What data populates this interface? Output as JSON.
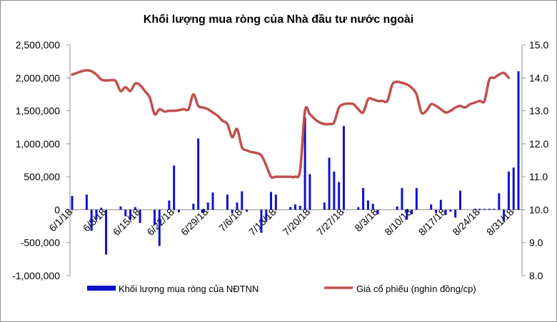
{
  "chart_data": {
    "type": "bar",
    "title": "Khối lượng mua ròng của Nhà đầu tư nước ngoài",
    "left_axis": {
      "ylim": [
        -1000000,
        2500000
      ],
      "ticks": [
        "-1,000,000",
        "-500,000",
        "0",
        "500,000",
        "1,000,000",
        "1,500,000",
        "2,000,000",
        "2,500,000"
      ],
      "tick_values": [
        -1000000,
        -500000,
        0,
        500000,
        1000000,
        1500000,
        2000000,
        2500000
      ]
    },
    "right_axis": {
      "ylim": [
        8.0,
        15.0
      ],
      "ticks": [
        "8.0",
        "9.0",
        "10.0",
        "11.0",
        "12.0",
        "13.0",
        "14.0",
        "15.0"
      ],
      "tick_values": [
        8,
        9,
        10,
        11,
        12,
        13,
        14,
        15
      ]
    },
    "x_axis": {
      "labels": [
        "6/1/18",
        "6/8/18",
        "6/15/18",
        "6/22/18",
        "6/29/18",
        "7/6/18",
        "7/13/18",
        "7/20/18",
        "7/27/18",
        "8/3/18",
        "8/10/18",
        "8/17/18",
        "8/24/18",
        "8/31/18"
      ],
      "label_days": [
        0,
        7,
        14,
        21,
        28,
        35,
        42,
        49,
        56,
        63,
        70,
        77,
        84,
        91
      ]
    },
    "series": [
      {
        "name": "Khối lượng mua ròng của NĐTNN",
        "type": "bar",
        "axis": "left",
        "color": "#1010cc",
        "points": [
          [
            0,
            210000
          ],
          [
            3,
            230000
          ],
          [
            4,
            -320000
          ],
          [
            5,
            -150000
          ],
          [
            6,
            30000
          ],
          [
            7,
            -680000
          ],
          [
            10,
            50000
          ],
          [
            11,
            -100000
          ],
          [
            12,
            -150000
          ],
          [
            13,
            40000
          ],
          [
            14,
            -200000
          ],
          [
            17,
            -230000
          ],
          [
            18,
            -550000
          ],
          [
            20,
            140000
          ],
          [
            21,
            670000
          ],
          [
            22,
            -40000
          ],
          [
            25,
            90000
          ],
          [
            26,
            1080000
          ],
          [
            27,
            -40000
          ],
          [
            28,
            110000
          ],
          [
            29,
            260000
          ],
          [
            32,
            230000
          ],
          [
            33,
            -50000
          ],
          [
            34,
            110000
          ],
          [
            35,
            280000
          ],
          [
            36,
            -30000
          ],
          [
            39,
            -350000
          ],
          [
            40,
            -180000
          ],
          [
            41,
            270000
          ],
          [
            42,
            230000
          ],
          [
            45,
            40000
          ],
          [
            46,
            80000
          ],
          [
            47,
            60000
          ],
          [
            48,
            1400000
          ],
          [
            49,
            540000
          ],
          [
            52,
            110000
          ],
          [
            53,
            790000
          ],
          [
            54,
            580000
          ],
          [
            55,
            420000
          ],
          [
            56,
            1270000
          ],
          [
            59,
            40000
          ],
          [
            60,
            330000
          ],
          [
            61,
            140000
          ],
          [
            62,
            90000
          ],
          [
            63,
            -70000
          ],
          [
            67,
            50000
          ],
          [
            68,
            330000
          ],
          [
            69,
            -150000
          ],
          [
            70,
            -70000
          ],
          [
            71,
            330000
          ],
          [
            74,
            80000
          ],
          [
            75,
            -50000
          ],
          [
            76,
            150000
          ],
          [
            77,
            -80000
          ],
          [
            78,
            -30000
          ],
          [
            79,
            -120000
          ],
          [
            80,
            290000
          ],
          [
            83,
            15000
          ],
          [
            84,
            15000
          ],
          [
            85,
            15000
          ],
          [
            86,
            15000
          ],
          [
            87,
            15000
          ],
          [
            88,
            250000
          ],
          [
            89,
            -180000
          ],
          [
            90,
            580000
          ],
          [
            91,
            640000
          ],
          [
            92,
            2100000
          ]
        ]
      },
      {
        "name": "Giá cổ phiếu (nghìn đồng/cp)",
        "type": "line",
        "axis": "right",
        "color": "#c0504d",
        "points": [
          [
            0,
            14.1
          ],
          [
            1,
            14.15
          ],
          [
            2,
            14.2
          ],
          [
            3,
            14.23
          ],
          [
            4,
            14.2
          ],
          [
            5,
            14.1
          ],
          [
            6,
            13.95
          ],
          [
            7,
            13.92
          ],
          [
            8,
            13.93
          ],
          [
            9,
            13.9
          ],
          [
            10,
            13.6
          ],
          [
            11,
            13.72
          ],
          [
            12,
            13.6
          ],
          [
            13,
            13.83
          ],
          [
            14,
            13.78
          ],
          [
            15,
            13.6
          ],
          [
            16,
            13.4
          ],
          [
            17,
            12.9
          ],
          [
            18,
            13.05
          ],
          [
            19,
            12.98
          ],
          [
            20,
            13.0
          ],
          [
            21,
            13.0
          ],
          [
            22,
            13.02
          ],
          [
            23,
            13.05
          ],
          [
            24,
            13.05
          ],
          [
            25,
            13.5
          ],
          [
            26,
            13.15
          ],
          [
            27,
            13.1
          ],
          [
            28,
            13.05
          ],
          [
            29,
            12.95
          ],
          [
            30,
            12.85
          ],
          [
            31,
            12.7
          ],
          [
            32,
            12.6
          ],
          [
            33,
            12.2
          ],
          [
            34,
            12.45
          ],
          [
            35,
            11.9
          ],
          [
            36,
            11.8
          ],
          [
            37,
            11.75
          ],
          [
            38,
            11.72
          ],
          [
            39,
            11.65
          ],
          [
            40,
            11.35
          ],
          [
            41,
            11.0
          ],
          [
            42,
            11.0
          ],
          [
            43,
            11.0
          ],
          [
            44,
            11.0
          ],
          [
            45,
            11.0
          ],
          [
            46,
            11.0
          ],
          [
            47,
            11.2
          ],
          [
            48,
            13.0
          ],
          [
            49,
            12.9
          ],
          [
            50,
            12.75
          ],
          [
            51,
            12.65
          ],
          [
            52,
            12.6
          ],
          [
            53,
            12.6
          ],
          [
            54,
            12.65
          ],
          [
            55,
            13.1
          ],
          [
            56,
            13.2
          ],
          [
            57,
            13.22
          ],
          [
            58,
            13.2
          ],
          [
            59,
            13.05
          ],
          [
            60,
            12.95
          ],
          [
            61,
            13.35
          ],
          [
            62,
            13.35
          ],
          [
            63,
            13.3
          ],
          [
            64,
            13.3
          ],
          [
            65,
            13.3
          ],
          [
            66,
            13.8
          ],
          [
            67,
            13.88
          ],
          [
            68,
            13.85
          ],
          [
            69,
            13.8
          ],
          [
            70,
            13.7
          ],
          [
            71,
            13.5
          ],
          [
            72,
            12.95
          ],
          [
            73,
            13.0
          ],
          [
            74,
            13.2
          ],
          [
            75,
            13.15
          ],
          [
            76,
            13.05
          ],
          [
            77,
            12.95
          ],
          [
            78,
            13.0
          ],
          [
            79,
            13.1
          ],
          [
            80,
            13.15
          ],
          [
            81,
            13.1
          ],
          [
            82,
            13.2
          ],
          [
            83,
            13.25
          ],
          [
            84,
            13.3
          ],
          [
            85,
            13.3
          ],
          [
            86,
            13.95
          ],
          [
            87,
            14.0
          ],
          [
            88,
            14.1
          ],
          [
            89,
            14.15
          ],
          [
            90,
            14.0
          ]
        ]
      }
    ],
    "legend": {
      "placement": "bottom",
      "items": [
        "Khối lượng mua ròng của NĐTNN",
        "Giá cổ phiếu (nghìn đồng/cp)"
      ]
    },
    "grid": false
  }
}
